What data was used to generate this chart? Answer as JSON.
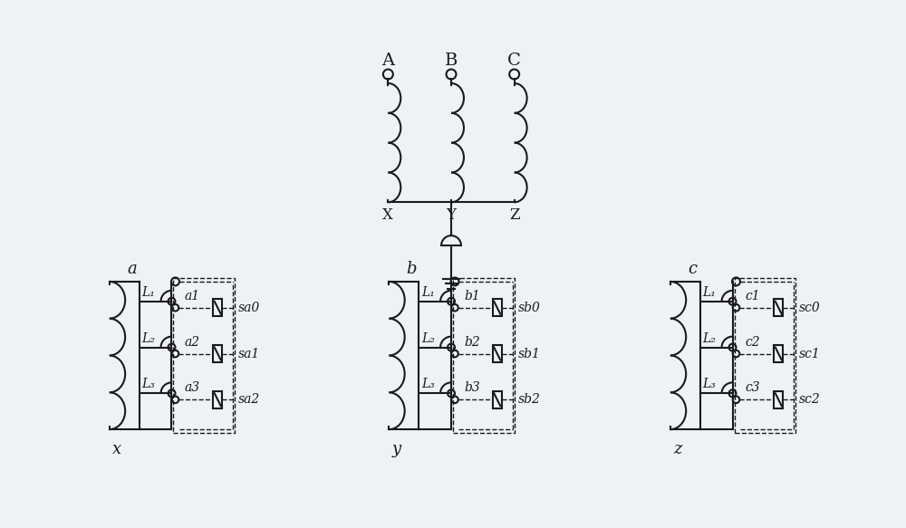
{
  "bg_color": "#eef2f7",
  "line_color": "#1a1a1a",
  "top_labels": [
    "A",
    "B",
    "C"
  ],
  "top_xyz": [
    "X",
    "Y",
    "Z"
  ],
  "section_labels": [
    "a",
    "b",
    "c"
  ],
  "section_bot_labels": [
    "x",
    "y",
    "z"
  ],
  "switch_labels": [
    [
      "a1",
      "a2",
      "a3"
    ],
    [
      "b1",
      "b2",
      "b3"
    ],
    [
      "c1",
      "c2",
      "c3"
    ]
  ],
  "cap_labels": [
    [
      "sa0",
      "sa1",
      "sa2"
    ],
    [
      "sb0",
      "sb1",
      "sb2"
    ],
    [
      "sc0",
      "sc1",
      "sc2"
    ]
  ],
  "ind_labels": [
    "L₁",
    "L₂",
    "L₃"
  ],
  "font_size": 12
}
